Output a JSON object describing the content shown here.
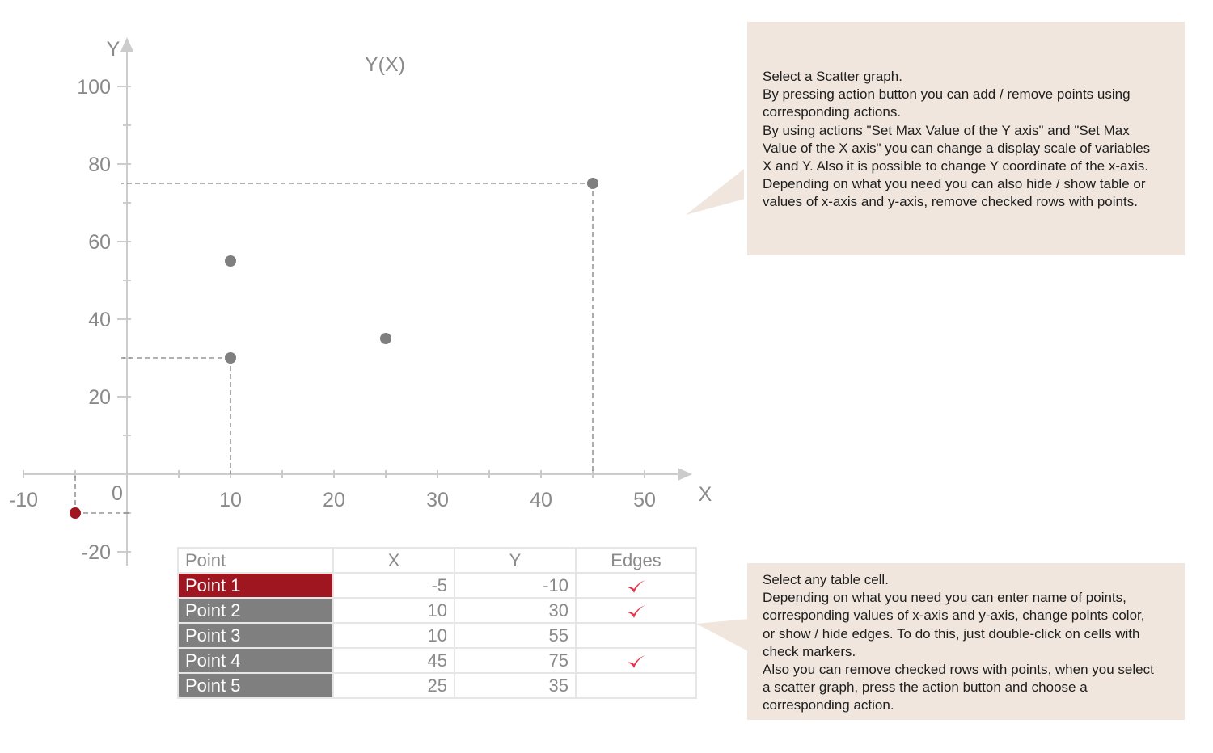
{
  "chart_data": {
    "type": "scatter",
    "title": "Y(X)",
    "xlabel": "X",
    "ylabel": "Y",
    "xlim": [
      -10,
      55
    ],
    "ylim": [
      -20,
      110
    ],
    "x_ticks": [
      "-10",
      "10",
      "20",
      "30",
      "40",
      "50"
    ],
    "y_ticks": [
      "100",
      "80",
      "60",
      "40",
      "20",
      "-20"
    ],
    "origin_label": "0",
    "grid": false,
    "points": [
      {
        "name": "Point 1",
        "x": -5,
        "y": -10,
        "edges": true,
        "color": "#a01620"
      },
      {
        "name": "Point 2",
        "x": 10,
        "y": 30,
        "edges": true,
        "color": "#7f7f7f"
      },
      {
        "name": "Point 3",
        "x": 10,
        "y": 55,
        "edges": false,
        "color": "#7f7f7f"
      },
      {
        "name": "Point 4",
        "x": 45,
        "y": 75,
        "edges": true,
        "color": "#7f7f7f"
      },
      {
        "name": "Point 5",
        "x": 25,
        "y": 35,
        "edges": false,
        "color": "#7f7f7f"
      }
    ]
  },
  "table": {
    "headers": {
      "point": "Point",
      "x": "X",
      "y": "Y",
      "edges": "Edges"
    },
    "rows": [
      {
        "name": "Point 1",
        "x": "-5",
        "y": "-10",
        "edges": true
      },
      {
        "name": "Point 2",
        "x": "10",
        "y": "30",
        "edges": true
      },
      {
        "name": "Point 3",
        "x": "10",
        "y": "55",
        "edges": false
      },
      {
        "name": "Point 4",
        "x": "45",
        "y": "75",
        "edges": true
      },
      {
        "name": "Point 5",
        "x": "25",
        "y": "35",
        "edges": false
      }
    ]
  },
  "notes": {
    "top": [
      "Select a Scatter graph.",
      "By pressing action button you can add / remove points using",
      "corresponding actions.",
      "By using actions \"Set Max Value of the Y axis\" and \"Set Max",
      "Value of the X axis\" you can change a display scale of variables",
      "X and Y. Also it is possible to change Y coordinate of the x-axis.",
      "Depending on what you need you can also hide / show table or",
      "values of x-axis and y-axis, remove checked rows with points."
    ],
    "bottom": [
      "Select any table cell.",
      "Depending on what you need you can enter name of points,",
      "corresponding values of x-axis and y-axis, change points color,",
      "or show / hide edges. To do this, just double-click on cells with",
      "check markers.",
      "Also you can remove checked rows with points, when you select",
      "a scatter graph, press the action button and choose a",
      "corresponding action."
    ]
  },
  "colors": {
    "axis": "#cccccc",
    "label": "#8a8a8a",
    "point": "#7f7f7f",
    "selected": "#a01620",
    "check": "#e8334a",
    "note_bg": "#f0e6dd"
  }
}
